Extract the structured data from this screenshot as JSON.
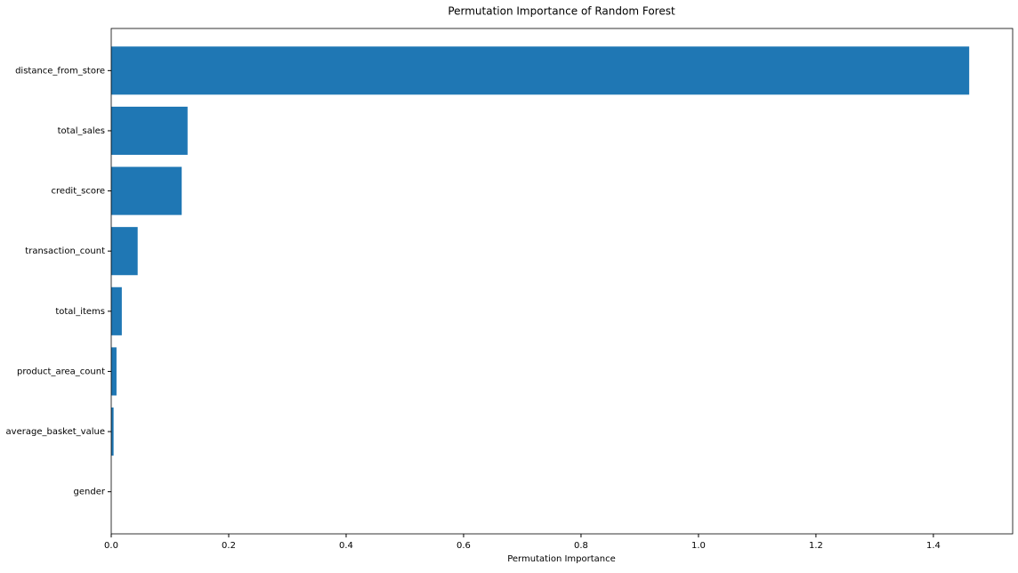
{
  "chart_data": {
    "type": "barh",
    "title": "Permutation Importance of Random Forest",
    "xlabel": "Permutation Importance",
    "categories": [
      "distance_from_store",
      "total_sales",
      "credit_score",
      "transaction_count",
      "total_items",
      "product_area_count",
      "average_basket_value",
      "gender"
    ],
    "values": [
      1.461,
      0.13,
      0.12,
      0.045,
      0.018,
      0.009,
      0.004,
      0.0
    ],
    "color": "#1f77b4",
    "xlim": [
      0,
      1.535
    ],
    "xticks": [
      {
        "value": 0,
        "label": "0.0"
      },
      0.2,
      0.4,
      0.6,
      0.8,
      {
        "value": 1,
        "label": "1.0"
      },
      1.2,
      1.4
    ]
  }
}
